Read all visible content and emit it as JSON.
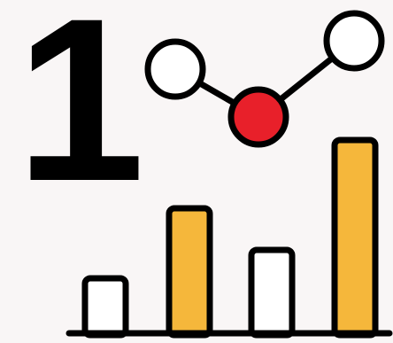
{
  "numeral": "1",
  "colors": {
    "background": "#f9f6f6",
    "outline": "#000000",
    "node_fill": "#ffffff",
    "node_highlight": "#e8202a",
    "bar_plain": "#ffffff",
    "bar_highlight": "#f5b73b"
  },
  "icons": {
    "node_graph": "connected-nodes-icon",
    "bar_chart": "bar-chart-icon"
  },
  "bars": [
    {
      "level": 0.27,
      "highlight": false
    },
    {
      "level": 0.64,
      "highlight": true
    },
    {
      "level": 0.42,
      "highlight": false
    },
    {
      "level": 1.0,
      "highlight": true
    }
  ],
  "nodes": [
    {
      "highlight": false
    },
    {
      "highlight": true
    },
    {
      "highlight": false
    }
  ]
}
